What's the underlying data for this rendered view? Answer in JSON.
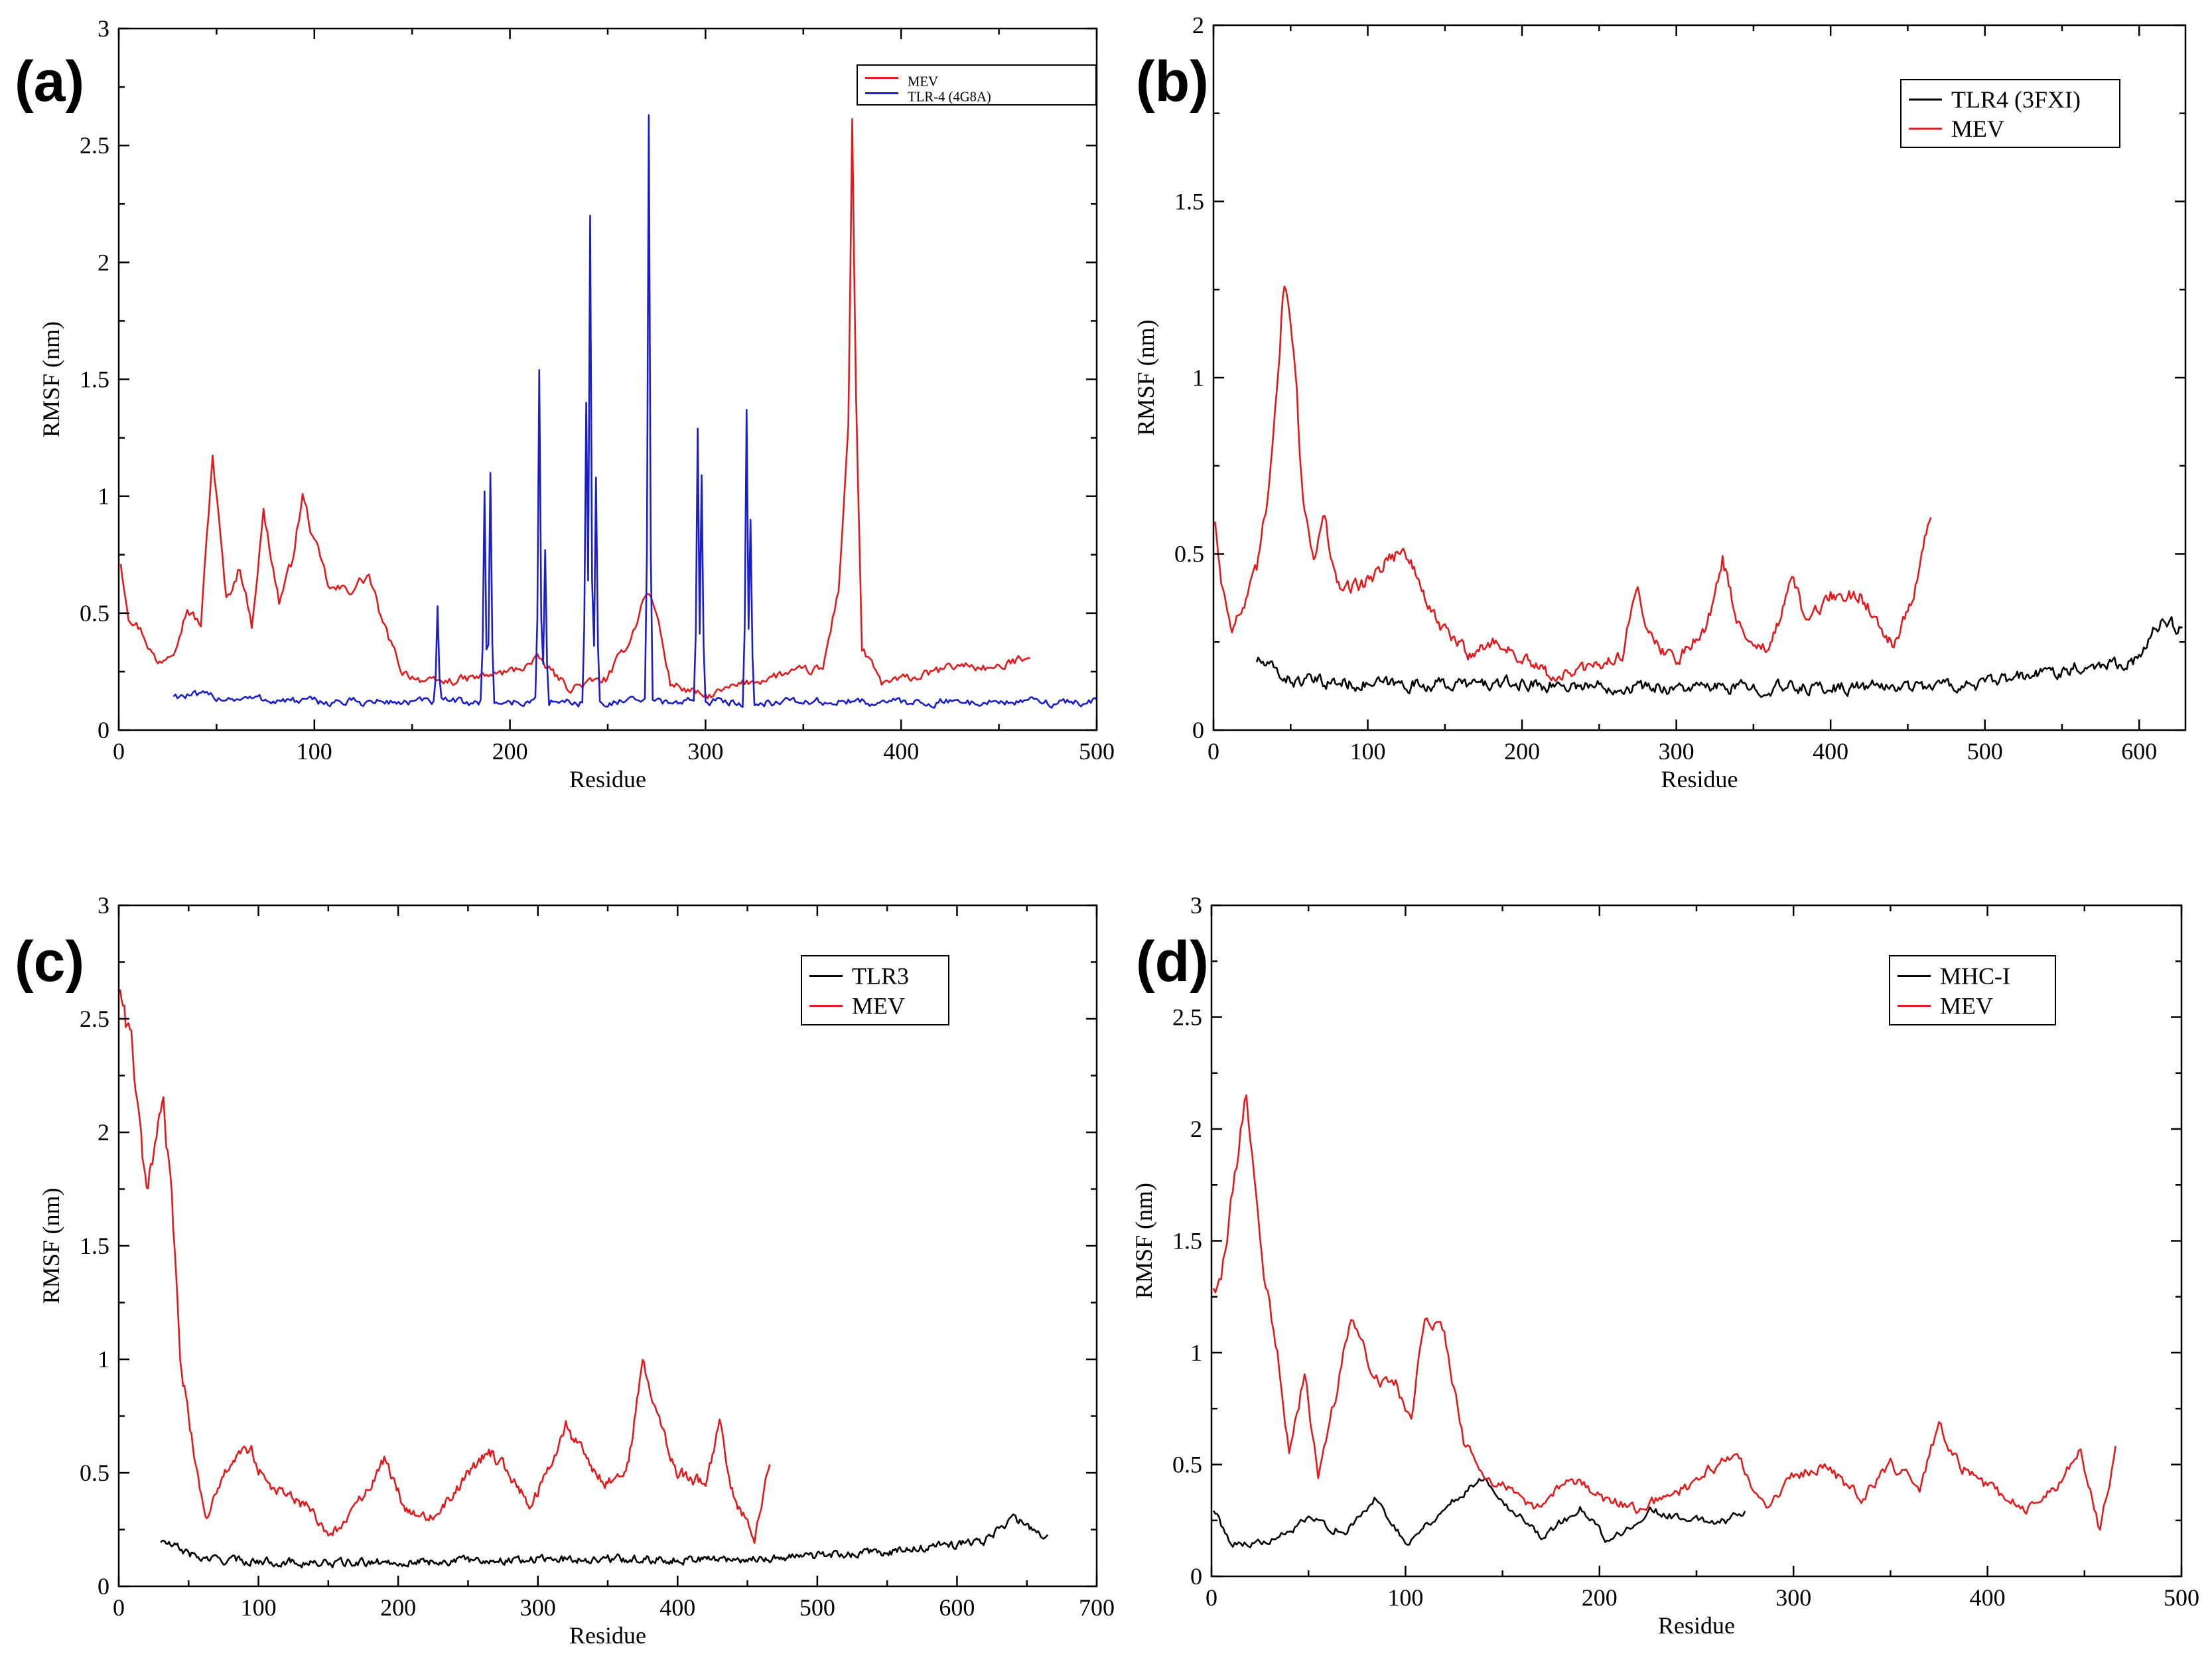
{
  "chart_data": [
    {
      "panel_label": "(a)",
      "type": "line",
      "xlabel": "Residue",
      "ylabel": "RMSF (nm)",
      "xlim": [
        0,
        500
      ],
      "ylim": [
        0,
        3
      ],
      "xticks": [
        0,
        100,
        200,
        300,
        400,
        500
      ],
      "yticks": [
        0,
        0.5,
        1,
        1.5,
        2,
        2.5,
        3
      ],
      "legend_position": "top-right",
      "series": [
        {
          "name": "MEV",
          "color": "#e31a1c",
          "x_start": 1,
          "x_end": 466,
          "base": 0.15,
          "noise": 0.05,
          "keypoints": [
            [
              1,
              0.72
            ],
            [
              5,
              0.5
            ],
            [
              12,
              0.42
            ],
            [
              20,
              0.28
            ],
            [
              28,
              0.35
            ],
            [
              35,
              0.52
            ],
            [
              42,
              0.45
            ],
            [
              48,
              1.18
            ],
            [
              55,
              0.55
            ],
            [
              62,
              0.7
            ],
            [
              68,
              0.45
            ],
            [
              74,
              0.93
            ],
            [
              82,
              0.55
            ],
            [
              88,
              0.7
            ],
            [
              94,
              1.0
            ],
            [
              100,
              0.8
            ],
            [
              108,
              0.6
            ],
            [
              118,
              0.6
            ],
            [
              128,
              0.66
            ],
            [
              135,
              0.45
            ],
            [
              145,
              0.25
            ],
            [
              160,
              0.2
            ],
            [
              180,
              0.22
            ],
            [
              200,
              0.25
            ],
            [
              215,
              0.3
            ],
            [
              230,
              0.18
            ],
            [
              250,
              0.22
            ],
            [
              262,
              0.4
            ],
            [
              270,
              0.6
            ],
            [
              275,
              0.5
            ],
            [
              282,
              0.2
            ],
            [
              300,
              0.14
            ],
            [
              320,
              0.2
            ],
            [
              340,
              0.24
            ],
            [
              360,
              0.26
            ],
            [
              368,
              0.6
            ],
            [
              373,
              1.3
            ],
            [
              375,
              2.58
            ],
            [
              377,
              1.4
            ],
            [
              380,
              0.35
            ],
            [
              390,
              0.2
            ],
            [
              410,
              0.23
            ],
            [
              430,
              0.28
            ],
            [
              450,
              0.26
            ],
            [
              466,
              0.33
            ]
          ]
        },
        {
          "name": "TLR-4 (4G8A)",
          "color": "#1a1fc9",
          "x_start": 28,
          "x_end": 500,
          "base": 0.13,
          "noise": 0.05,
          "keypoints": [
            [
              28,
              0.15
            ],
            [
              100,
              0.12
            ],
            [
              200,
              0.12
            ],
            [
              300,
              0.12
            ],
            [
              400,
              0.12
            ],
            [
              500,
              0.12
            ]
          ],
          "spikes": [
            [
              163,
              0.53
            ],
            [
              187,
              1.02
            ],
            [
              190,
              1.1
            ],
            [
              215,
              1.54
            ],
            [
              218,
              0.77
            ],
            [
              239,
              1.4
            ],
            [
              241,
              2.2
            ],
            [
              244,
              1.08
            ],
            [
              271,
              2.63
            ],
            [
              296,
              1.29
            ],
            [
              298,
              1.09
            ],
            [
              321,
              1.37
            ],
            [
              323,
              0.9
            ]
          ]
        }
      ]
    },
    {
      "panel_label": "(b)",
      "type": "line",
      "xlabel": "Residue",
      "ylabel": "RMSF (nm)",
      "xlim": [
        0,
        630
      ],
      "ylim": [
        0,
        2
      ],
      "xticks": [
        0,
        100,
        200,
        300,
        400,
        500,
        600
      ],
      "yticks": [
        0,
        0.5,
        1,
        1.5,
        2
      ],
      "legend_position": "top-right",
      "series": [
        {
          "name": "TLR4 (3FXI)",
          "color": "#000000",
          "x_start": 28,
          "x_end": 628,
          "base": 0.12,
          "noise": 0.05,
          "keypoints": [
            [
              28,
              0.2
            ],
            [
              50,
              0.14
            ],
            [
              100,
              0.13
            ],
            [
              200,
              0.13
            ],
            [
              300,
              0.12
            ],
            [
              400,
              0.12
            ],
            [
              500,
              0.13
            ],
            [
              560,
              0.18
            ],
            [
              600,
              0.2
            ],
            [
              615,
              0.32
            ],
            [
              628,
              0.28
            ]
          ]
        },
        {
          "name": "MEV",
          "color": "#e31a1c",
          "x_start": 1,
          "x_end": 465,
          "base": 0.12,
          "noise": 0.05,
          "keypoints": [
            [
              1,
              0.6
            ],
            [
              5,
              0.42
            ],
            [
              12,
              0.3
            ],
            [
              20,
              0.35
            ],
            [
              28,
              0.45
            ],
            [
              35,
              0.65
            ],
            [
              42,
              1.05
            ],
            [
              46,
              1.28
            ],
            [
              52,
              1.1
            ],
            [
              58,
              0.65
            ],
            [
              65,
              0.5
            ],
            [
              72,
              0.6
            ],
            [
              80,
              0.4
            ],
            [
              100,
              0.42
            ],
            [
              115,
              0.5
            ],
            [
              125,
              0.5
            ],
            [
              135,
              0.4
            ],
            [
              145,
              0.3
            ],
            [
              165,
              0.22
            ],
            [
              185,
              0.25
            ],
            [
              200,
              0.2
            ],
            [
              220,
              0.15
            ],
            [
              250,
              0.18
            ],
            [
              265,
              0.22
            ],
            [
              275,
              0.4
            ],
            [
              285,
              0.25
            ],
            [
              300,
              0.2
            ],
            [
              320,
              0.3
            ],
            [
              330,
              0.48
            ],
            [
              340,
              0.3
            ],
            [
              360,
              0.22
            ],
            [
              375,
              0.42
            ],
            [
              385,
              0.3
            ],
            [
              400,
              0.38
            ],
            [
              420,
              0.38
            ],
            [
              440,
              0.25
            ],
            [
              452,
              0.35
            ],
            [
              465,
              0.62
            ]
          ]
        }
      ]
    },
    {
      "panel_label": "(c)",
      "type": "line",
      "xlabel": "Residue",
      "ylabel": "RMSF (nm)",
      "xlim": [
        0,
        700
      ],
      "ylim": [
        0,
        3
      ],
      "xticks": [
        0,
        100,
        200,
        300,
        400,
        500,
        600,
        700
      ],
      "yticks": [
        0,
        0.5,
        1,
        1.5,
        2,
        2.5,
        3
      ],
      "legend_position": "top-right",
      "series": [
        {
          "name": "TLR3",
          "color": "#000000",
          "x_start": 30,
          "x_end": 665,
          "base": 0.12,
          "noise": 0.05,
          "keypoints": [
            [
              30,
              0.2
            ],
            [
              60,
              0.12
            ],
            [
              150,
              0.1
            ],
            [
              300,
              0.12
            ],
            [
              450,
              0.12
            ],
            [
              550,
              0.15
            ],
            [
              620,
              0.2
            ],
            [
              640,
              0.3
            ],
            [
              665,
              0.22
            ]
          ]
        },
        {
          "name": "MEV",
          "color": "#e31a1c",
          "x_start": 1,
          "x_end": 466,
          "base": 0.18,
          "noise": 0.06,
          "keypoints": [
            [
              1,
              2.65
            ],
            [
              5,
              2.5
            ],
            [
              10,
              2.35
            ],
            [
              15,
              2.0
            ],
            [
              20,
              1.7
            ],
            [
              26,
              1.95
            ],
            [
              32,
              2.1
            ],
            [
              38,
              1.7
            ],
            [
              44,
              1.0
            ],
            [
              50,
              0.75
            ],
            [
              56,
              0.5
            ],
            [
              62,
              0.3
            ],
            [
              70,
              0.4
            ],
            [
              80,
              0.55
            ],
            [
              95,
              0.6
            ],
            [
              105,
              0.45
            ],
            [
              120,
              0.4
            ],
            [
              135,
              0.35
            ],
            [
              150,
              0.22
            ],
            [
              165,
              0.3
            ],
            [
              180,
              0.45
            ],
            [
              190,
              0.55
            ],
            [
              205,
              0.35
            ],
            [
              225,
              0.3
            ],
            [
              245,
              0.45
            ],
            [
              265,
              0.6
            ],
            [
              280,
              0.5
            ],
            [
              295,
              0.35
            ],
            [
              310,
              0.55
            ],
            [
              320,
              0.7
            ],
            [
              335,
              0.55
            ],
            [
              350,
              0.45
            ],
            [
              365,
              0.55
            ],
            [
              375,
              0.98
            ],
            [
              385,
              0.75
            ],
            [
              400,
              0.5
            ],
            [
              420,
              0.45
            ],
            [
              430,
              0.7
            ],
            [
              440,
              0.4
            ],
            [
              455,
              0.22
            ],
            [
              466,
              0.55
            ]
          ]
        }
      ]
    },
    {
      "panel_label": "(d)",
      "type": "line",
      "xlabel": "Residue",
      "ylabel": "RMSF (nm)",
      "xlim": [
        0,
        500
      ],
      "ylim": [
        0,
        3
      ],
      "xticks": [
        0,
        100,
        200,
        300,
        400,
        500
      ],
      "yticks": [
        0,
        0.5,
        1,
        1.5,
        2,
        2.5,
        3
      ],
      "legend_position": "top-right",
      "series": [
        {
          "name": "MHC-I",
          "color": "#000000",
          "x_start": 1,
          "x_end": 275,
          "base": 0.2,
          "noise": 0.05,
          "keypoints": [
            [
              1,
              0.3
            ],
            [
              10,
              0.15
            ],
            [
              30,
              0.15
            ],
            [
              50,
              0.25
            ],
            [
              70,
              0.2
            ],
            [
              85,
              0.35
            ],
            [
              100,
              0.15
            ],
            [
              120,
              0.3
            ],
            [
              140,
              0.45
            ],
            [
              155,
              0.3
            ],
            [
              170,
              0.18
            ],
            [
              190,
              0.3
            ],
            [
              205,
              0.15
            ],
            [
              225,
              0.3
            ],
            [
              245,
              0.25
            ],
            [
              265,
              0.25
            ],
            [
              275,
              0.3
            ]
          ]
        },
        {
          "name": "MEV",
          "color": "#e31a1c",
          "x_start": 1,
          "x_end": 466,
          "base": 0.2,
          "noise": 0.06,
          "keypoints": [
            [
              1,
              1.3
            ],
            [
              5,
              1.3
            ],
            [
              12,
              1.8
            ],
            [
              18,
              2.15
            ],
            [
              22,
              1.8
            ],
            [
              28,
              1.3
            ],
            [
              34,
              1.0
            ],
            [
              40,
              0.55
            ],
            [
              48,
              0.9
            ],
            [
              55,
              0.45
            ],
            [
              65,
              0.85
            ],
            [
              72,
              1.15
            ],
            [
              85,
              0.9
            ],
            [
              95,
              0.85
            ],
            [
              103,
              0.7
            ],
            [
              110,
              1.2
            ],
            [
              120,
              1.1
            ],
            [
              130,
              0.6
            ],
            [
              140,
              0.45
            ],
            [
              150,
              0.4
            ],
            [
              170,
              0.3
            ],
            [
              185,
              0.45
            ],
            [
              200,
              0.35
            ],
            [
              220,
              0.3
            ],
            [
              245,
              0.4
            ],
            [
              270,
              0.55
            ],
            [
              285,
              0.3
            ],
            [
              300,
              0.45
            ],
            [
              315,
              0.5
            ],
            [
              335,
              0.35
            ],
            [
              350,
              0.5
            ],
            [
              365,
              0.4
            ],
            [
              375,
              0.68
            ],
            [
              385,
              0.5
            ],
            [
              400,
              0.4
            ],
            [
              420,
              0.3
            ],
            [
              435,
              0.4
            ],
            [
              448,
              0.55
            ],
            [
              458,
              0.2
            ],
            [
              466,
              0.58
            ]
          ]
        }
      ]
    }
  ]
}
